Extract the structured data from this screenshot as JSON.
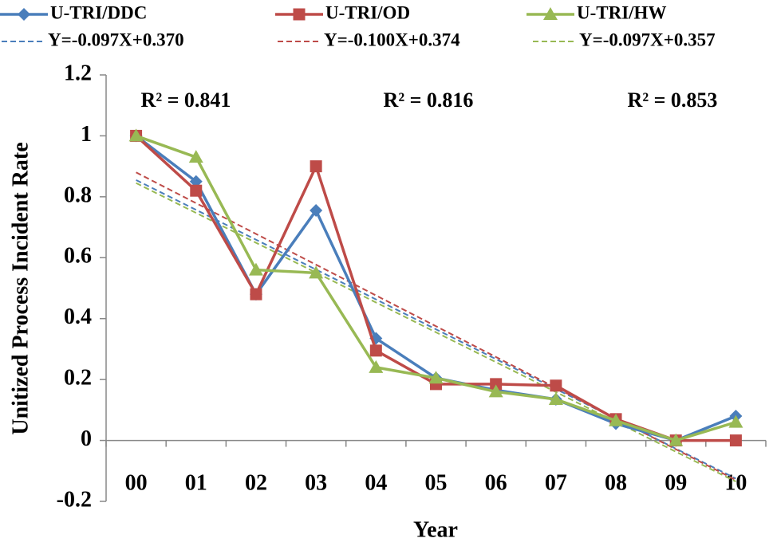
{
  "chart_data": {
    "type": "line",
    "x_label": "Year",
    "y_label": "Unitized Process Incident Rate",
    "categories": [
      "00",
      "01",
      "02",
      "03",
      "04",
      "05",
      "06",
      "07",
      "08",
      "09",
      "10"
    ],
    "ylim": [
      -0.2,
      1.2
    ],
    "yticks": [
      -0.2,
      0,
      0.2,
      0.4,
      0.6,
      0.8,
      1,
      1.2
    ],
    "series": [
      {
        "name": "U-TRI/DDC",
        "color": "#4a7ebb",
        "marker": "diamond",
        "style": "solid",
        "values": [
          1,
          0.85,
          0.48,
          0.755,
          0.335,
          0.205,
          0.165,
          0.135,
          0.055,
          0.0,
          0.08
        ]
      },
      {
        "name": "U-TRI/OD",
        "color": "#be4b48",
        "marker": "square",
        "style": "solid",
        "values": [
          1,
          0.82,
          0.48,
          0.9,
          0.295,
          0.185,
          0.185,
          0.18,
          0.07,
          0.0,
          0.0
        ]
      },
      {
        "name": "U-TRI/HW",
        "color": "#98b954",
        "marker": "triangle",
        "style": "solid",
        "values": [
          1,
          0.93,
          0.56,
          0.55,
          0.24,
          0.205,
          0.16,
          0.135,
          0.065,
          0.0,
          0.06
        ]
      },
      {
        "name": "Y=-0.097X+0.370",
        "color": "#4a7ebb",
        "marker": "none",
        "style": "dashed",
        "values": [
          0.855,
          0.757,
          0.659,
          0.561,
          0.463,
          0.365,
          0.267,
          0.169,
          0.071,
          -0.027,
          -0.125
        ]
      },
      {
        "name": "Y=-0.100X+0.374",
        "color": "#be4b48",
        "marker": "none",
        "style": "dashed",
        "values": [
          0.88,
          0.779,
          0.678,
          0.577,
          0.476,
          0.375,
          0.274,
          0.173,
          0.072,
          -0.029,
          -0.13
        ]
      },
      {
        "name": "Y=-0.097X+0.357",
        "color": "#98b954",
        "marker": "none",
        "style": "dashed",
        "values": [
          0.845,
          0.747,
          0.649,
          0.551,
          0.453,
          0.355,
          0.257,
          0.159,
          0.061,
          -0.037,
          -0.135
        ]
      }
    ],
    "annotations": [
      {
        "text": "R² = 0.841"
      },
      {
        "text": "R² = 0.816"
      },
      {
        "text": "R² = 0.853"
      }
    ],
    "legend": "top"
  }
}
